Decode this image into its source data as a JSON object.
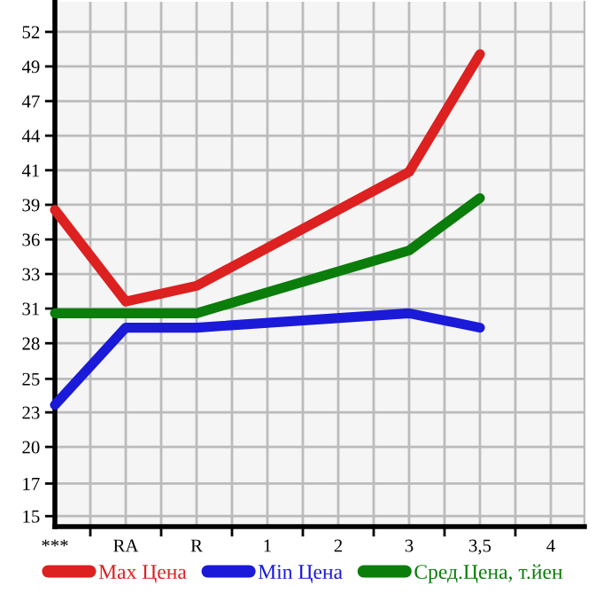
{
  "chart_data": {
    "type": "line",
    "categories": [
      "***",
      "RA",
      "R",
      "1",
      "2",
      "3",
      "3,5",
      "4"
    ],
    "series": [
      {
        "name": "Max Цена",
        "color": "#dd2020",
        "values": [
          38.4,
          31.4,
          32.6,
          null,
          null,
          41.3,
          50.3,
          null
        ]
      },
      {
        "name": "Min Цена",
        "color": "#1a1ad8",
        "values": [
          23.5,
          29.4,
          29.4,
          null,
          null,
          30.5,
          29.4,
          null
        ]
      },
      {
        "name": "Сред.Цена, т.йен",
        "color": "#0a7d0a",
        "values": [
          30.5,
          30.5,
          30.5,
          null,
          null,
          35.3,
          39.3,
          null
        ]
      }
    ],
    "ylim": [
      14.2,
      54.3
    ],
    "yticks": [
      15,
      {
        "value": 17.49,
        "label": "17"
      },
      {
        "value": 20.29,
        "label": "20"
      },
      {
        "value": 22.93,
        "label": "23"
      },
      {
        "value": 25.49,
        "label": "25"
      },
      {
        "value": 28.21,
        "label": "28"
      },
      {
        "value": 30.86,
        "label": "31"
      },
      {
        "value": 33.5,
        "label": "33"
      },
      {
        "value": 36.14,
        "label": "36"
      },
      {
        "value": 38.79,
        "label": "39"
      },
      {
        "value": 41.43,
        "label": "41"
      },
      {
        "value": 44.07,
        "label": "44"
      },
      {
        "value": 46.71,
        "label": "47"
      },
      {
        "value": 49.36,
        "label": "49"
      },
      52
    ],
    "grid": true,
    "legend": "bottom",
    "marker": "none",
    "line_style": "solid"
  }
}
